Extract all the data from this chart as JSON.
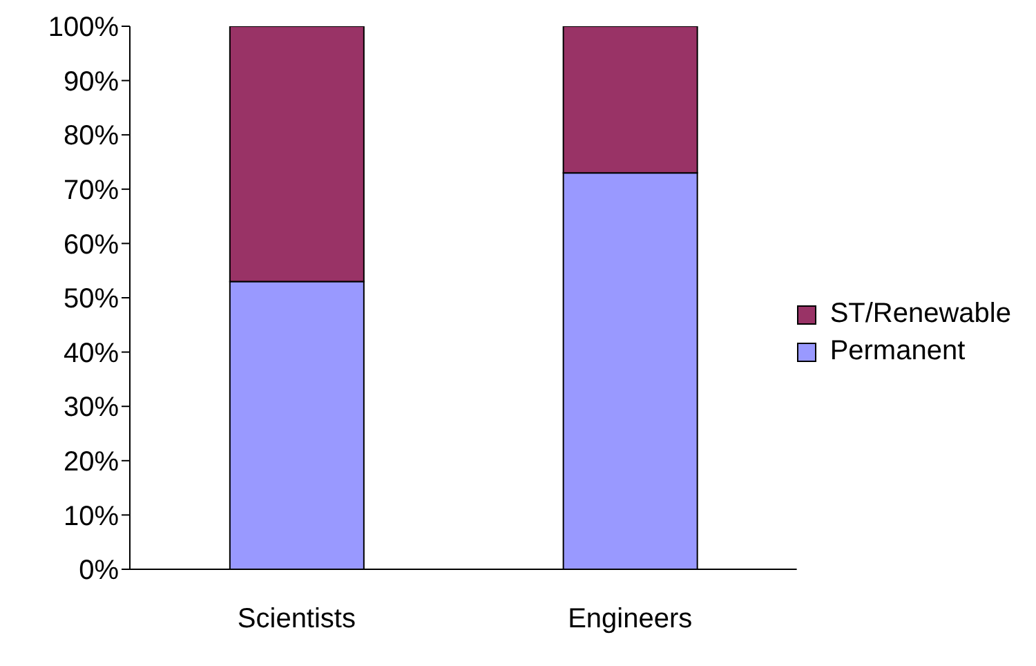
{
  "chart_data": {
    "type": "bar",
    "stacked": true,
    "categories": [
      "Scientists",
      "Engineers"
    ],
    "series": [
      {
        "name": "Permanent",
        "color": "#9999ff",
        "values": [
          53,
          73
        ]
      },
      {
        "name": "ST/Renewable",
        "color": "#993366",
        "values": [
          47,
          27
        ]
      }
    ],
    "ylim": [
      0,
      100
    ],
    "yticks": [
      {
        "value": 0,
        "label": "0%"
      },
      {
        "value": 10,
        "label": "10%"
      },
      {
        "value": 20,
        "label": "20%"
      },
      {
        "value": 30,
        "label": "30%"
      },
      {
        "value": 40,
        "label": "40%"
      },
      {
        "value": 50,
        "label": "50%"
      },
      {
        "value": 60,
        "label": "60%"
      },
      {
        "value": 70,
        "label": "70%"
      },
      {
        "value": 80,
        "label": "80%"
      },
      {
        "value": 90,
        "label": "90%"
      },
      {
        "value": 100,
        "label": "100%"
      }
    ],
    "grid": false,
    "legend": "right"
  }
}
